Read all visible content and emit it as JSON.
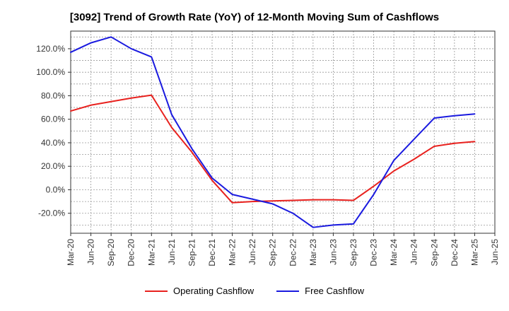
{
  "chart_data": {
    "type": "line",
    "title": "[3092]  Trend of Growth Rate (YoY) of 12-Month Moving Sum of Cashflows",
    "xlabel": "",
    "ylabel": "",
    "categories": [
      "Mar-20",
      "Jun-20",
      "Sep-20",
      "Dec-20",
      "Mar-21",
      "Jun-21",
      "Sep-21",
      "Dec-21",
      "Mar-22",
      "Jun-22",
      "Sep-22",
      "Dec-22",
      "Mar-23",
      "Jun-23",
      "Sep-23",
      "Dec-23",
      "Mar-24",
      "Jun-24",
      "Sep-24",
      "Dec-24",
      "Mar-25",
      "Jun-25"
    ],
    "ylim": [
      -37,
      135
    ],
    "yticks": [
      -20,
      0,
      20,
      40,
      60,
      80,
      100,
      120
    ],
    "ytick_labels": [
      "-20.0%",
      "0.0%",
      "20.0%",
      "40.0%",
      "60.0%",
      "80.0%",
      "100.0%",
      "120.0%"
    ],
    "grid": true,
    "legend_position": "bottom",
    "series": [
      {
        "name": "Operating Cashflow",
        "color": "#e8211e",
        "values": [
          67,
          72,
          75,
          78,
          80.5,
          53,
          32,
          8,
          -11,
          -10,
          -9.5,
          -9,
          -8.5,
          -8.5,
          -9,
          3,
          16,
          26,
          37,
          39.5,
          41,
          null
        ]
      },
      {
        "name": "Free Cashflow",
        "color": "#1a1adf",
        "values": [
          117,
          125,
          130,
          120,
          113,
          64,
          35,
          10,
          -4,
          -8,
          -12,
          -20,
          -32,
          -30,
          -29,
          -4,
          25,
          43,
          61,
          63,
          64.5,
          null
        ]
      }
    ]
  }
}
